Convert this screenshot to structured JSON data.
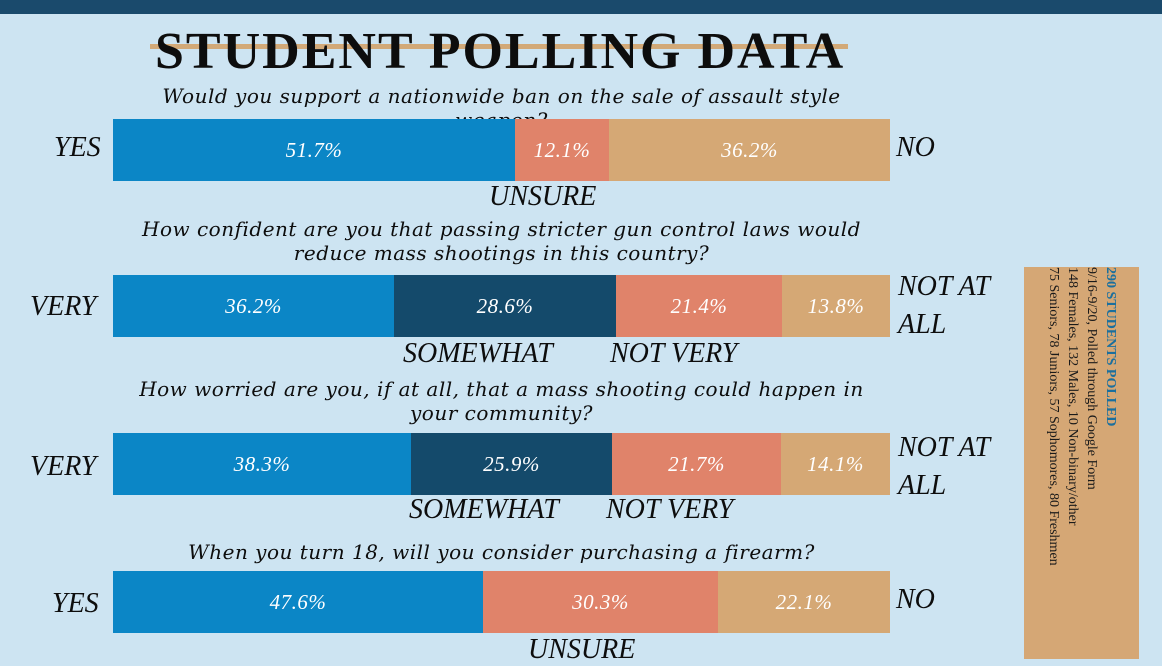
{
  "title": "STUDENT POLLING DATA",
  "colors": {
    "very": "#0b86c6",
    "somewhat": "#144a6b",
    "notvery": "#e0836a",
    "notatall": "#d5a875",
    "background": "#cde4f2",
    "topbar": "#1a4a6c"
  },
  "chart_data": [
    {
      "type": "bar",
      "question": "Would you support a nationwide ban on the sale of assault style weapon?",
      "left_label": "YES",
      "right_label": "NO",
      "under_labels": [
        "UNSURE"
      ],
      "series": [
        {
          "name": "YES",
          "value": 51.7,
          "label": "51.7%",
          "color": "#0b86c6"
        },
        {
          "name": "UNSURE",
          "value": 12.1,
          "label": "12.1%",
          "color": "#e0836a"
        },
        {
          "name": "NO",
          "value": 36.2,
          "label": "36.2%",
          "color": "#d5a875"
        }
      ]
    },
    {
      "type": "bar",
      "question": "How confident are you that passing stricter gun control laws would reduce mass shootings in this country?",
      "left_label": "VERY",
      "right_label": "NOT AT ALL",
      "under_labels": [
        "SOMEWHAT",
        "NOT VERY"
      ],
      "series": [
        {
          "name": "VERY",
          "value": 36.2,
          "label": "36.2%",
          "color": "#0b86c6"
        },
        {
          "name": "SOMEWHAT",
          "value": 28.6,
          "label": "28.6%",
          "color": "#144a6b"
        },
        {
          "name": "NOT VERY",
          "value": 21.4,
          "label": "21.4%",
          "color": "#e0836a"
        },
        {
          "name": "NOT AT ALL",
          "value": 13.8,
          "label": "13.8%",
          "color": "#d5a875"
        }
      ]
    },
    {
      "type": "bar",
      "question": "How worried are you, if at all, that a mass shooting could happen in your community?",
      "left_label": "VERY",
      "right_label": "NOT AT ALL",
      "under_labels": [
        "SOMEWHAT",
        "NOT VERY"
      ],
      "series": [
        {
          "name": "VERY",
          "value": 38.3,
          "label": "38.3%",
          "color": "#0b86c6"
        },
        {
          "name": "SOMEWHAT",
          "value": 25.9,
          "label": "25.9%",
          "color": "#144a6b"
        },
        {
          "name": "NOT VERY",
          "value": 21.7,
          "label": "21.7%",
          "color": "#e0836a"
        },
        {
          "name": "NOT AT ALL",
          "value": 14.1,
          "label": "14.1%",
          "color": "#d5a875"
        }
      ]
    },
    {
      "type": "bar",
      "question": "When you turn 18, will you consider purchasing a firearm?",
      "left_label": "YES",
      "right_label": "NO",
      "under_labels": [
        "UNSURE"
      ],
      "series": [
        {
          "name": "YES",
          "value": 47.6,
          "label": "47.6%",
          "color": "#0b86c6"
        },
        {
          "name": "UNSURE",
          "value": 30.3,
          "label": "30.3%",
          "color": "#e0836a"
        },
        {
          "name": "NO",
          "value": 22.1,
          "label": "22.1%",
          "color": "#d5a875"
        }
      ]
    }
  ],
  "info": {
    "heading": "290 STUDENTS POLLED",
    "line1": "9/16-9/20, Polled through Google Form",
    "line2": "148 Females, 132 Males, 10 Non-binary/other",
    "line3": "75 Seniors, 78 Juniors, 57 Sophomores, 80 Freshmen"
  }
}
